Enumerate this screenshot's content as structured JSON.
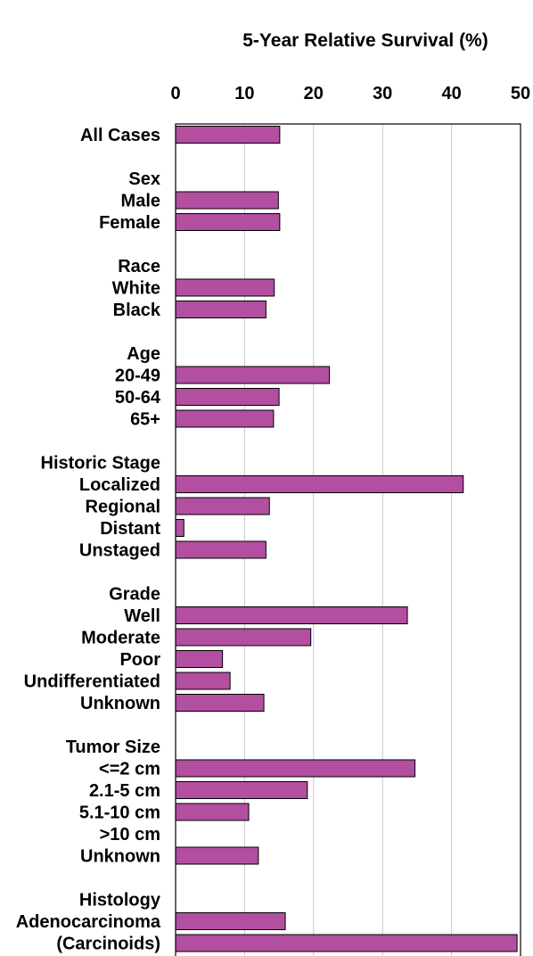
{
  "chart_data": {
    "type": "bar",
    "orientation": "horizontal",
    "title": "5-Year Relative Survival (%)",
    "xlim": [
      0,
      50
    ],
    "xticks": [
      0,
      10,
      20,
      30,
      40,
      50
    ],
    "grid": true,
    "bar_color": "#B24FA0",
    "bar_border_color": "#000000",
    "rows": [
      {
        "label": "All Cases",
        "value": 15.1
      },
      {
        "label": "Sex",
        "heading": true
      },
      {
        "label": "Male",
        "value": 14.9
      },
      {
        "label": "Female",
        "value": 15.1
      },
      {
        "label": "Race",
        "heading": true
      },
      {
        "label": "White",
        "value": 14.3
      },
      {
        "label": "Black",
        "value": 13.1
      },
      {
        "label": "Age",
        "heading": true
      },
      {
        "label": "20-49",
        "value": 22.3
      },
      {
        "label": "50-64",
        "value": 15.0
      },
      {
        "label": "65+",
        "value": 14.2
      },
      {
        "label": "Historic Stage",
        "heading": true
      },
      {
        "label": "Localized",
        "value": 41.7
      },
      {
        "label": "Regional",
        "value": 13.6
      },
      {
        "label": "Distant",
        "value": 1.2
      },
      {
        "label": "Unstaged",
        "value": 13.1
      },
      {
        "label": "Grade",
        "heading": true
      },
      {
        "label": "Well",
        "value": 33.6
      },
      {
        "label": "Moderate",
        "value": 19.6
      },
      {
        "label": "Poor",
        "value": 6.8
      },
      {
        "label": "Undifferentiated",
        "value": 7.9
      },
      {
        "label": "Unknown",
        "value": 12.8
      },
      {
        "label": "Tumor Size",
        "heading": true
      },
      {
        "label": "<=2 cm",
        "value": 34.7
      },
      {
        "label": "2.1-5 cm",
        "value": 19.1
      },
      {
        "label": "5.1-10 cm",
        "value": 10.6
      },
      {
        "label": ">10 cm",
        "value": null
      },
      {
        "label": "Unknown",
        "value": 12.0
      },
      {
        "label": "Histology",
        "heading": true
      },
      {
        "label": "Adenocarcinoma",
        "value": 15.9
      },
      {
        "label": "(Carcinoids)",
        "value": 49.5
      }
    ]
  }
}
